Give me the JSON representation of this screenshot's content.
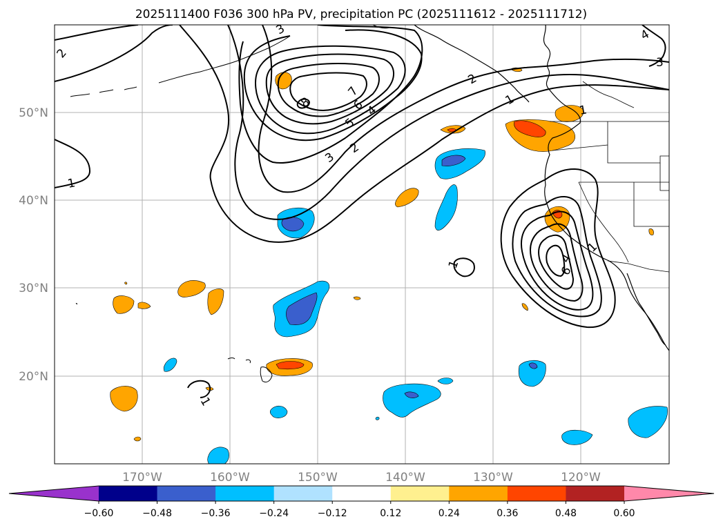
{
  "title": "2025111400 F036 300 hPa PV, precipitation PC (2025111612 - 2025111712)",
  "map": {
    "lon_labels": [
      "170°W",
      "160°W",
      "150°W",
      "140°W",
      "130°W",
      "120°W"
    ],
    "lat_labels": [
      "50°N",
      "40°N",
      "30°N",
      "20°N"
    ],
    "gridlines": true
  },
  "pv_contour_labels": [
    "1",
    "2",
    "3",
    "4",
    "5",
    "6",
    "7",
    "8",
    "1",
    "1",
    "1",
    "2",
    "3",
    "4",
    "5",
    "6",
    "1",
    "3",
    "2",
    "4",
    "1"
  ],
  "colorbar": {
    "tick_labels": [
      "−0.60",
      "−0.48",
      "−0.36",
      "−0.24",
      "−0.12",
      "0.12",
      "0.24",
      "0.36",
      "0.48",
      "0.60"
    ],
    "colors": [
      "#9932cc",
      "#00008b",
      "#3a5fcd",
      "#00bfff",
      "#b0e2ff",
      "#ffffff",
      "#fff08f",
      "#ffa500",
      "#ff4500",
      "#b22222",
      "#ff88aa"
    ],
    "extend": "both"
  },
  "colors": {
    "orange": "#ffa500",
    "red_orange": "#ff4500",
    "light_blue": "#00bfff",
    "medium_blue": "#3a5fcd",
    "gridline": "#b0b0b0",
    "tick_text": "#808080"
  }
}
